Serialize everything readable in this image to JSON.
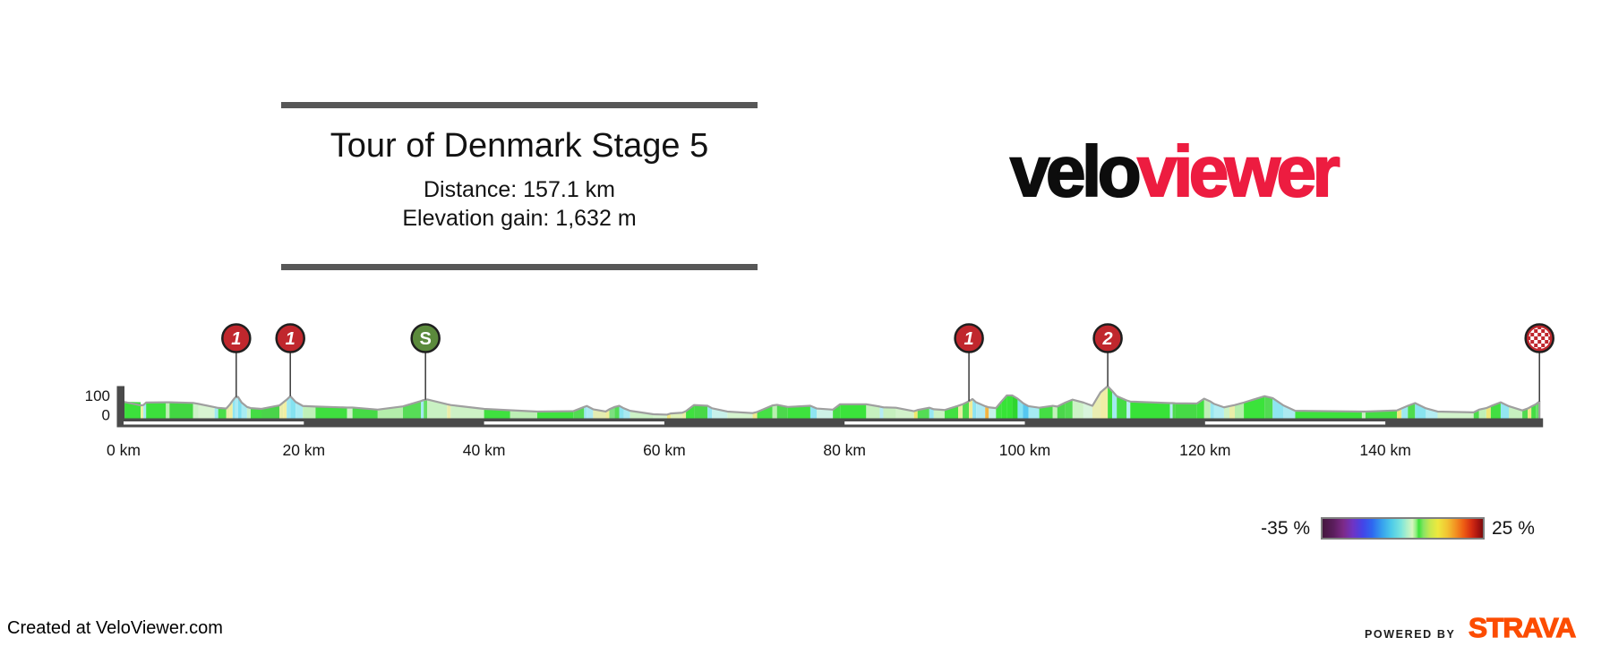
{
  "header": {
    "title": "Tour of Denmark Stage 5",
    "distance": "Distance: 157.1 km",
    "elevation_gain": "Elevation gain: 1,632 m",
    "bar_color": "#575757"
  },
  "logo": {
    "black_text": "velo",
    "red_text": "viewer",
    "red_color": "#ed1c40"
  },
  "legend": {
    "min_label": "-35 %",
    "max_label": "25 %",
    "border_color": "#7f7f7f",
    "stops": [
      [
        "#45173f",
        0
      ],
      [
        "#5c1e5e",
        7
      ],
      [
        "#7c2a88",
        13
      ],
      [
        "#6f34c4",
        19
      ],
      [
        "#4444e8",
        25
      ],
      [
        "#2e68f0",
        31
      ],
      [
        "#36a0ee",
        37
      ],
      [
        "#4ecbe9",
        43
      ],
      [
        "#7ce5dc",
        49
      ],
      [
        "#b2f0c8",
        53
      ],
      [
        "#d7f5c0",
        56
      ],
      [
        "#8aee7a",
        58.5
      ],
      [
        "#3ae23a",
        60
      ],
      [
        "#8ae463",
        63
      ],
      [
        "#c6e84e",
        67
      ],
      [
        "#eee83e",
        72
      ],
      [
        "#f2c232",
        78
      ],
      [
        "#f29222",
        83
      ],
      [
        "#ee5d14",
        88
      ],
      [
        "#d42c12",
        93
      ],
      [
        "#a81410",
        97
      ],
      [
        "#7a0d0d",
        100
      ]
    ]
  },
  "footer": {
    "credit": "Created at VeloViewer.com",
    "powered_by": "POWERED BY",
    "strava": "STRAVA",
    "strava_color": "#fc4c02"
  },
  "chart_data": {
    "type": "area",
    "title": "Tour of Denmark Stage 5",
    "total_distance_km": 157.1,
    "elevation_gain_m": 1632,
    "xlabel_unit": "km",
    "ylabel_unit": "m",
    "ylim": [
      0,
      170
    ],
    "axis_color": "#4a4a4a",
    "outline_color": "#9f9f9f",
    "road_dash_color": "#ffffff",
    "road_dash_km": [
      [
        0,
        20
      ],
      [
        40,
        60
      ],
      [
        80,
        100
      ],
      [
        120,
        140
      ]
    ],
    "x_ticks": [
      {
        "km": 0,
        "label": "0 km"
      },
      {
        "km": 20,
        "label": "20 km"
      },
      {
        "km": 40,
        "label": "40 km"
      },
      {
        "km": 60,
        "label": "60 km"
      },
      {
        "km": 80,
        "label": "80 km"
      },
      {
        "km": 100,
        "label": "100 km"
      },
      {
        "km": 120,
        "label": "120 km"
      },
      {
        "km": 140,
        "label": "140 km"
      }
    ],
    "y_ticks": [
      {
        "m": 100,
        "label": "100"
      },
      {
        "m": 0,
        "label": "0"
      }
    ],
    "marker_styles": {
      "climb_fill": "#c0272d",
      "sprint_fill": "#5b8a3c",
      "finish_fill": "#c0272d",
      "border": "#1f1f1f",
      "stem": "#3a3a3a",
      "text": "#ffffff"
    },
    "markers": [
      {
        "km": 12.5,
        "kind": "climb",
        "label": "1",
        "elev": 104
      },
      {
        "km": 18.5,
        "kind": "climb",
        "label": "1",
        "elev": 108
      },
      {
        "km": 33.5,
        "kind": "sprint",
        "label": "S",
        "elev": 90
      },
      {
        "km": 93.8,
        "kind": "climb",
        "label": "1",
        "elev": 82
      },
      {
        "km": 109.2,
        "kind": "climb",
        "label": "2",
        "elev": 160
      },
      {
        "km": 157.1,
        "kind": "finish",
        "label": "",
        "elev": 80
      }
    ],
    "segments": [
      [
        0,
        1.9,
        79,
        77,
        "#3ce03c"
      ],
      [
        1.9,
        2.2,
        60,
        62,
        "#eeeea5"
      ],
      [
        2.2,
        2.5,
        62,
        75,
        "#a5e9f0"
      ],
      [
        2.5,
        4.7,
        75,
        76,
        "#3ce03c"
      ],
      [
        4.7,
        5.1,
        76,
        76,
        "#bfefb5"
      ],
      [
        5.1,
        7.7,
        76,
        73,
        "#42d742"
      ],
      [
        7.7,
        8.3,
        73,
        68,
        "#cdf2c8"
      ],
      [
        8.3,
        10.1,
        68,
        51,
        "#d8f4d2"
      ],
      [
        10.1,
        10.5,
        51,
        47,
        "#9fe8f0"
      ],
      [
        10.5,
        11.4,
        47,
        44,
        "#49dd49"
      ],
      [
        11.4,
        11.8,
        44,
        65,
        "#e7edaa"
      ],
      [
        11.8,
        12.1,
        65,
        85,
        "#f0eda0"
      ],
      [
        12.1,
        12.4,
        85,
        102,
        "#8fe5f2"
      ],
      [
        12.4,
        12.7,
        102,
        104,
        "#aeeaf2"
      ],
      [
        12.7,
        13.1,
        104,
        75,
        "#7ddff0"
      ],
      [
        13.1,
        13.7,
        75,
        52,
        "#a8ebf2"
      ],
      [
        13.7,
        14.1,
        52,
        46,
        "#c9f1c9"
      ],
      [
        14.1,
        15.3,
        46,
        42,
        "#44dc44"
      ],
      [
        15.3,
        17.3,
        42,
        60,
        "#4ad44a"
      ],
      [
        17.3,
        17.7,
        60,
        75,
        "#e9eda8"
      ],
      [
        17.7,
        18.1,
        75,
        90,
        "#f1eea2"
      ],
      [
        18.1,
        18.5,
        90,
        108,
        "#9de8f0"
      ],
      [
        18.5,
        19.1,
        108,
        78,
        "#85e2f0"
      ],
      [
        19.1,
        19.9,
        78,
        57,
        "#a9ecf2"
      ],
      [
        19.9,
        21.3,
        57,
        54,
        "#bff0b8"
      ],
      [
        21.3,
        24.8,
        54,
        49,
        "#3fdf3f"
      ],
      [
        24.8,
        25.4,
        49,
        49,
        "#cef2c8"
      ],
      [
        25.4,
        28.2,
        49,
        38,
        "#46da46"
      ],
      [
        28.2,
        31.0,
        38,
        55,
        "#b4eeab"
      ],
      [
        31.0,
        33.0,
        55,
        83,
        "#57dc57"
      ],
      [
        33.0,
        33.3,
        83,
        88,
        "#a2e9f1"
      ],
      [
        33.3,
        33.7,
        88,
        91,
        "#63de63"
      ],
      [
        33.7,
        35.9,
        91,
        66,
        "#c9f1c3"
      ],
      [
        35.9,
        36.3,
        66,
        62,
        "#eceda9"
      ],
      [
        36.3,
        40.0,
        62,
        42,
        "#cdf2c6"
      ],
      [
        40.0,
        42.9,
        42,
        35,
        "#3fe03f"
      ],
      [
        42.9,
        45.9,
        35,
        28,
        "#bdefb5"
      ],
      [
        45.9,
        49.9,
        28,
        30,
        "#3ee23e"
      ],
      [
        49.9,
        51.1,
        30,
        52,
        "#52db52"
      ],
      [
        51.1,
        51.4,
        52,
        57,
        "#9ce7f0"
      ],
      [
        51.4,
        52.1,
        57,
        40,
        "#abeaf1"
      ],
      [
        52.1,
        53.5,
        40,
        28,
        "#e4edb2"
      ],
      [
        53.5,
        53.9,
        28,
        40,
        "#f0ec9c"
      ],
      [
        53.9,
        54.5,
        40,
        52,
        "#7ce080"
      ],
      [
        54.5,
        55.0,
        52,
        58,
        "#55dc55"
      ],
      [
        55.0,
        55.5,
        58,
        45,
        "#8ae4f0"
      ],
      [
        55.5,
        56.2,
        45,
        32,
        "#a9eaf2"
      ],
      [
        56.2,
        58.8,
        32,
        14,
        "#ccf2c6"
      ],
      [
        58.8,
        60.3,
        14,
        12,
        "#d6f4cf"
      ],
      [
        60.3,
        60.7,
        12,
        18,
        "#f0e87e"
      ],
      [
        60.7,
        62.0,
        18,
        22,
        "#dff2b8"
      ],
      [
        62.0,
        62.4,
        22,
        30,
        "#e9eda5"
      ],
      [
        62.4,
        63.3,
        30,
        62,
        "#3fe13f"
      ],
      [
        63.3,
        64.8,
        62,
        58,
        "#48d848"
      ],
      [
        64.8,
        65.3,
        58,
        45,
        "#93e6f0"
      ],
      [
        65.3,
        67.0,
        45,
        28,
        "#c8f1ea"
      ],
      [
        67.0,
        69.8,
        28,
        20,
        "#d5f4ce"
      ],
      [
        69.8,
        70.3,
        20,
        26,
        "#efe98c"
      ],
      [
        70.3,
        72.0,
        26,
        60,
        "#46df46"
      ],
      [
        72.0,
        72.5,
        60,
        63,
        "#b9efb0"
      ],
      [
        72.5,
        73.7,
        63,
        52,
        "#4cd94c"
      ],
      [
        73.7,
        76.2,
        52,
        58,
        "#3ee23e"
      ],
      [
        76.2,
        76.9,
        58,
        44,
        "#8ee5f1"
      ],
      [
        76.9,
        78.7,
        44,
        38,
        "#cdf2e6"
      ],
      [
        78.7,
        79.5,
        38,
        66,
        "#45dd45"
      ],
      [
        79.5,
        82.4,
        66,
        66,
        "#3be33b"
      ],
      [
        82.4,
        83.9,
        66,
        54,
        "#c6f1bf"
      ],
      [
        83.9,
        84.3,
        54,
        50,
        "#b5ecf4"
      ],
      [
        84.3,
        85.7,
        50,
        48,
        "#c6f1bf"
      ],
      [
        85.7,
        87.7,
        48,
        30,
        "#d2f3cb"
      ],
      [
        87.7,
        88.1,
        30,
        36,
        "#f0e86e"
      ],
      [
        88.1,
        89.4,
        36,
        48,
        "#54dc54"
      ],
      [
        89.4,
        89.9,
        48,
        40,
        "#97e7f1"
      ],
      [
        89.9,
        91.1,
        40,
        36,
        "#cbf2c4"
      ],
      [
        91.1,
        92.6,
        36,
        58,
        "#42e042"
      ],
      [
        92.6,
        93.1,
        58,
        66,
        "#e8eda2"
      ],
      [
        93.1,
        93.8,
        66,
        82,
        "#4edc4e"
      ],
      [
        93.8,
        94.2,
        82,
        93,
        "#f0eb96"
      ],
      [
        94.2,
        94.6,
        93,
        76,
        "#8ce4f1"
      ],
      [
        94.6,
        95.6,
        76,
        56,
        "#aeebf3"
      ],
      [
        95.6,
        96.0,
        56,
        50,
        "#f2b440"
      ],
      [
        96.0,
        96.8,
        50,
        46,
        "#c5f1ea"
      ],
      [
        96.8,
        97.4,
        46,
        80,
        "#3ee23e"
      ],
      [
        97.4,
        98.0,
        80,
        112,
        "#36e436"
      ],
      [
        98.0,
        98.6,
        112,
        112,
        "#36e436"
      ],
      [
        98.6,
        99.2,
        112,
        95,
        "#2fd52f"
      ],
      [
        99.2,
        99.8,
        95,
        72,
        "#86e3f0"
      ],
      [
        99.8,
        100.4,
        72,
        56,
        "#55c8f0"
      ],
      [
        100.4,
        101.6,
        56,
        48,
        "#a5eaf2"
      ],
      [
        101.6,
        103.1,
        48,
        58,
        "#44de44"
      ],
      [
        103.1,
        103.6,
        58,
        54,
        "#c4f0bc"
      ],
      [
        103.6,
        104.5,
        54,
        75,
        "#4bd74b"
      ],
      [
        104.5,
        105.3,
        75,
        90,
        "#52dc52"
      ],
      [
        105.3,
        106.5,
        90,
        75,
        "#cdf2c6"
      ],
      [
        106.5,
        107.5,
        75,
        58,
        "#d8f4dc"
      ],
      [
        107.5,
        108.4,
        58,
        128,
        "#e9edb2"
      ],
      [
        108.4,
        109.2,
        128,
        160,
        "#f0eda6"
      ],
      [
        109.2,
        109.7,
        160,
        135,
        "#3ee03e"
      ],
      [
        109.7,
        110.2,
        135,
        108,
        "#a2e9f1"
      ],
      [
        110.2,
        111.3,
        108,
        86,
        "#44dc44"
      ],
      [
        111.3,
        111.7,
        86,
        80,
        "#b9edf4"
      ],
      [
        111.7,
        116.1,
        80,
        72,
        "#38e238"
      ],
      [
        116.1,
        116.4,
        72,
        72,
        "#b5ecf4"
      ],
      [
        116.4,
        116.7,
        72,
        71,
        "#4fd84f"
      ],
      [
        116.7,
        119.1,
        71,
        70,
        "#46da46"
      ],
      [
        119.1,
        119.9,
        70,
        95,
        "#3fe13f"
      ],
      [
        119.9,
        120.6,
        95,
        80,
        "#bfefb7"
      ],
      [
        120.6,
        121.0,
        80,
        68,
        "#98e7f1"
      ],
      [
        121.0,
        122.1,
        68,
        50,
        "#b2edf3"
      ],
      [
        122.1,
        122.7,
        50,
        56,
        "#cdf2c6"
      ],
      [
        122.7,
        123.3,
        56,
        62,
        "#e9eda8"
      ],
      [
        123.3,
        124.3,
        62,
        75,
        "#b4eeab"
      ],
      [
        124.3,
        126.6,
        75,
        108,
        "#3be33b"
      ],
      [
        126.6,
        127.5,
        108,
        98,
        "#52db52"
      ],
      [
        127.5,
        128.7,
        98,
        60,
        "#8ee5f1"
      ],
      [
        128.7,
        130.0,
        60,
        32,
        "#aceaf2"
      ],
      [
        130.0,
        137.4,
        32,
        28,
        "#3ce23c"
      ],
      [
        137.4,
        137.8,
        28,
        28,
        "#c9f1c2"
      ],
      [
        137.8,
        141.3,
        28,
        34,
        "#44dc44"
      ],
      [
        141.3,
        141.8,
        34,
        44,
        "#f0e87a"
      ],
      [
        141.8,
        142.5,
        44,
        58,
        "#9de8f0"
      ],
      [
        142.5,
        143.3,
        58,
        72,
        "#4edc4e"
      ],
      [
        143.3,
        144.5,
        72,
        45,
        "#89e4f0"
      ],
      [
        144.5,
        145.8,
        45,
        28,
        "#b4edf3"
      ],
      [
        145.8,
        149.8,
        28,
        24,
        "#d2f3cb"
      ],
      [
        149.8,
        150.4,
        24,
        38,
        "#4bdd4b"
      ],
      [
        150.4,
        151.2,
        38,
        46,
        "#bff0b7"
      ],
      [
        151.2,
        151.7,
        46,
        56,
        "#efe878"
      ],
      [
        151.7,
        152.8,
        56,
        76,
        "#42df42"
      ],
      [
        152.8,
        153.7,
        76,
        56,
        "#93e6f1"
      ],
      [
        153.7,
        155.2,
        56,
        34,
        "#c7f1c0"
      ],
      [
        155.2,
        155.8,
        34,
        44,
        "#50da50"
      ],
      [
        155.8,
        156.2,
        44,
        54,
        "#f0e986"
      ],
      [
        156.2,
        156.7,
        54,
        66,
        "#44de44"
      ],
      [
        156.7,
        157.1,
        66,
        80,
        "#65df65"
      ]
    ]
  }
}
